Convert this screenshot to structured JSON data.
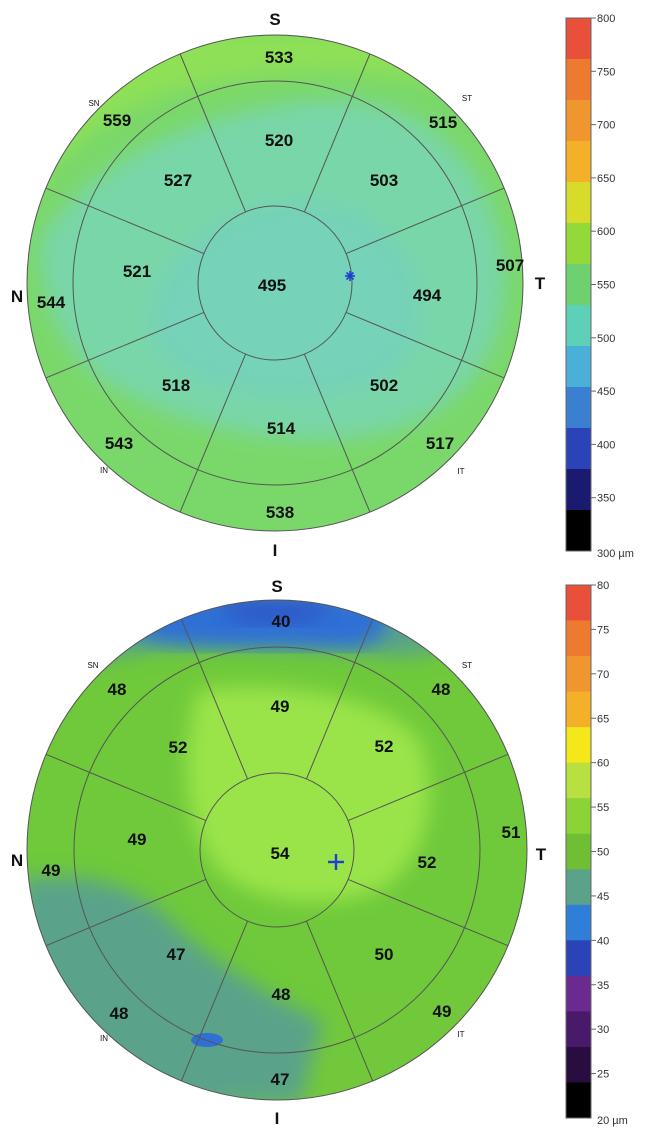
{
  "maps": [
    {
      "id": "thickness",
      "directions": {
        "top": "S",
        "bottom": "I",
        "left": "N",
        "right": "T",
        "sn": "SN",
        "st": "ST",
        "in": "IN",
        "it": "IT"
      },
      "center_value": "495",
      "ring1_values": {
        "s": "520",
        "st": "503",
        "t": "494",
        "it": "502",
        "i": "514",
        "in": "518",
        "n": "521",
        "sn": "527"
      },
      "ring2_values": {
        "s": "533",
        "st": "515",
        "t": "507",
        "it": "517",
        "i": "538",
        "in": "543",
        "n": "544",
        "sn": "559"
      },
      "marker": "asterisk",
      "colors": {
        "base": "#7ad86a",
        "inner": "#79d8b0",
        "outer_upper": "#8ee056"
      }
    },
    {
      "id": "epithelium",
      "directions": {
        "top": "S",
        "bottom": "I",
        "left": "N",
        "right": "T",
        "sn": "SN",
        "st": "ST",
        "in": "IN",
        "it": "IT"
      },
      "center_value": "54",
      "ring1_values": {
        "s": "49",
        "st": "52",
        "t": "52",
        "it": "50",
        "i": "48",
        "in": "47",
        "n": "49",
        "sn": "52"
      },
      "ring2_values": {
        "s": "40",
        "st": "48",
        "t": "51",
        "it": "49",
        "i": "47",
        "in": "48",
        "n": "49",
        "sn": "48"
      },
      "marker": "plus",
      "colors": {
        "base": "#6fc93a",
        "light": "#9ae448",
        "teal": "#5aa38a",
        "blue": "#2f6fd6"
      }
    }
  ],
  "scales": [
    {
      "unit_label": "300 µm",
      "ticks": [
        "800",
        "750",
        "700",
        "650",
        "600",
        "550",
        "500",
        "450",
        "400",
        "350"
      ],
      "colors": [
        "#e8503a",
        "#ee7a30",
        "#f0962e",
        "#f5b02a",
        "#d7dc2a",
        "#93d93a",
        "#6fd070",
        "#5fd0b8",
        "#4bb0d8",
        "#3a7fd0",
        "#2a44b8",
        "#1a1a70",
        "#000000"
      ]
    },
    {
      "unit_label": "20 µm",
      "ticks": [
        "80",
        "75",
        "70",
        "65",
        "60",
        "55",
        "50",
        "45",
        "40",
        "35",
        "30",
        "25"
      ],
      "colors": [
        "#e8503a",
        "#ee7a30",
        "#f0962e",
        "#f5b02a",
        "#f5e81a",
        "#b8e040",
        "#8cd436",
        "#6fbf35",
        "#5aa38a",
        "#2f7fd8",
        "#2a44b8",
        "#6a2a90",
        "#4a1a6a",
        "#2a0d40",
        "#000000"
      ]
    }
  ]
}
